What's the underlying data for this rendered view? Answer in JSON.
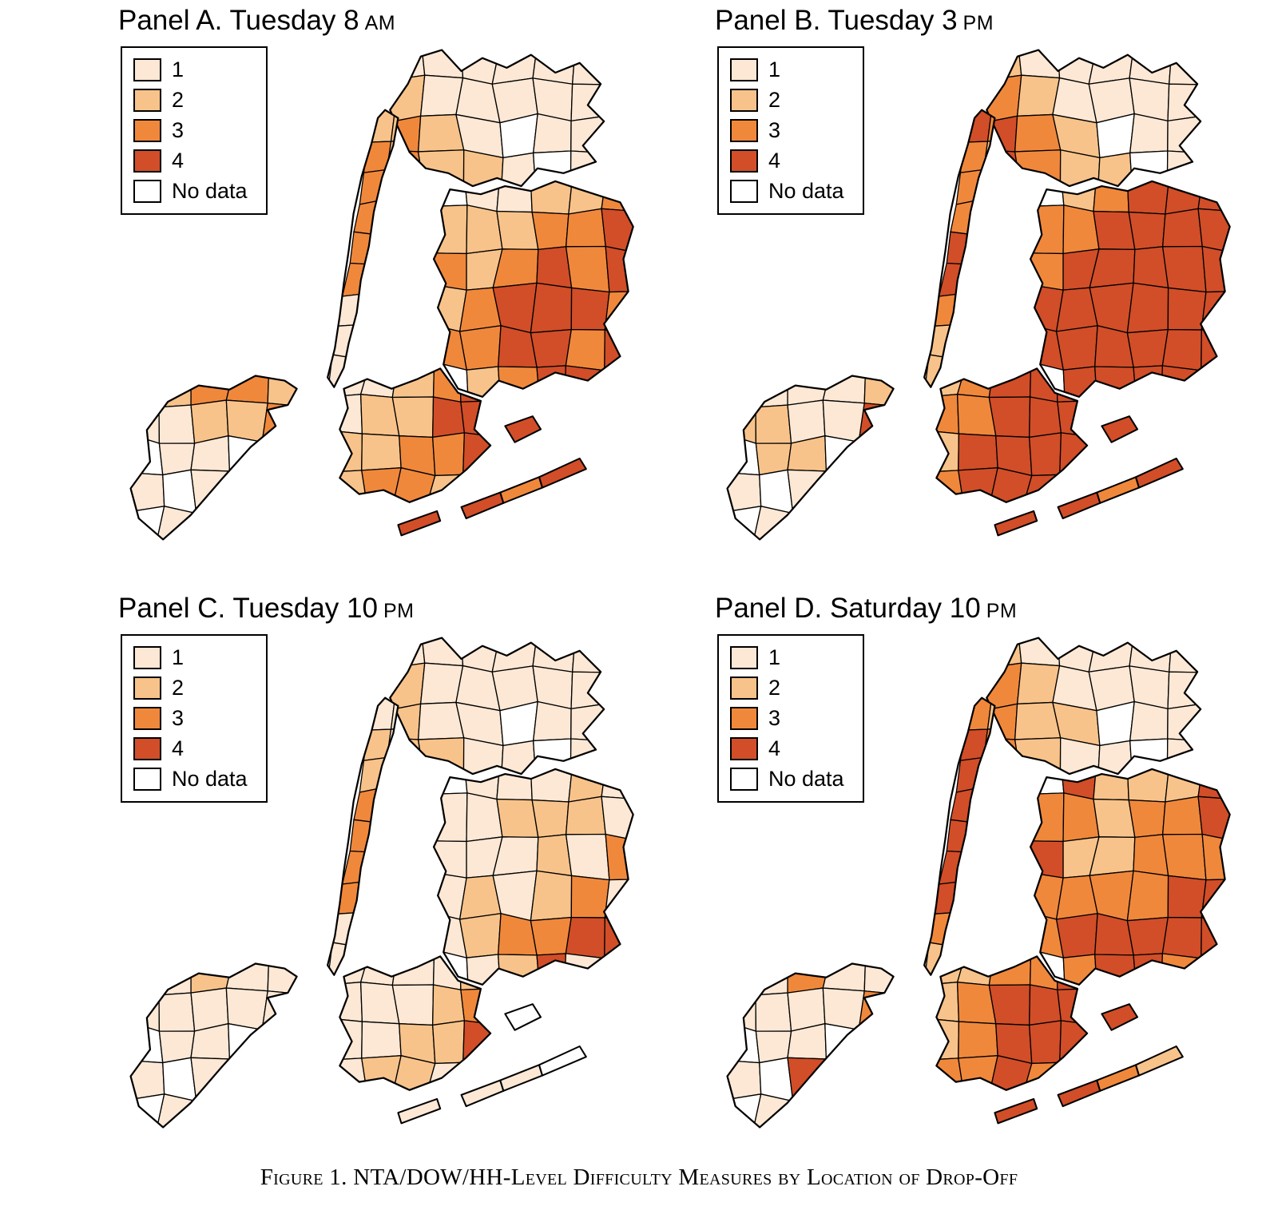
{
  "figure": {
    "caption": "Figure 1. NTA/DOW/HH-Level Difficulty Measures by Location of Drop-Off"
  },
  "legend": {
    "items": [
      {
        "label": "1",
        "value": 1
      },
      {
        "label": "2",
        "value": 2
      },
      {
        "label": "3",
        "value": 3
      },
      {
        "label": "4",
        "value": 4
      },
      {
        "label": "No data",
        "value": 0
      }
    ]
  },
  "colors": {
    "0": "#FFFFFF",
    "1": "#FCE8D5",
    "2": "#F8C38A",
    "3": "#F0883C",
    "4": "#D14E28",
    "outline": "#000000"
  },
  "panels": [
    {
      "id": "A",
      "title": "Panel A. Tuesday 8",
      "meridiem": "AM",
      "regions": {
        "bronx": [
          1,
          1,
          1,
          1,
          1,
          1,
          2,
          1,
          1,
          1,
          1,
          1,
          3,
          2,
          1,
          0,
          1,
          1,
          3,
          2,
          2,
          1,
          0,
          1
        ],
        "manhattan": [
          2,
          2,
          3,
          2,
          3,
          2,
          3,
          1,
          3,
          2,
          3,
          1,
          1,
          1,
          1,
          2,
          1,
          1
        ],
        "queens": [
          0,
          1,
          1,
          2,
          2,
          3,
          2,
          2,
          2,
          3,
          3,
          4,
          3,
          2,
          3,
          4,
          3,
          4,
          2,
          3,
          4,
          4,
          4,
          3,
          3,
          3,
          4,
          4,
          3,
          4,
          0,
          2,
          3,
          4,
          4,
          0
        ],
        "brooklyn": [
          1,
          1,
          2,
          3,
          4,
          1,
          2,
          2,
          4,
          4,
          2,
          2,
          3,
          3,
          4,
          2,
          3,
          3,
          2,
          0
        ],
        "staten": [
          1,
          2,
          3,
          3,
          2,
          1,
          1,
          2,
          2,
          3,
          0,
          1,
          1,
          0,
          4,
          1,
          0,
          1,
          1,
          0,
          0,
          1,
          0,
          1,
          0
        ],
        "rockaway": [
          4,
          4,
          3,
          4,
          4
        ]
      }
    },
    {
      "id": "B",
      "title": "Panel B. Tuesday 3",
      "meridiem": "PM",
      "regions": {
        "bronx": [
          2,
          1,
          1,
          1,
          1,
          1,
          3,
          2,
          1,
          1,
          1,
          1,
          4,
          3,
          2,
          0,
          1,
          1,
          4,
          3,
          2,
          2,
          0,
          1
        ],
        "manhattan": [
          4,
          3,
          3,
          2,
          3,
          2,
          3,
          2,
          4,
          2,
          4,
          2,
          3,
          2,
          2,
          3,
          2,
          2
        ],
        "queens": [
          0,
          2,
          3,
          4,
          4,
          4,
          3,
          3,
          4,
          4,
          4,
          4,
          3,
          4,
          4,
          4,
          4,
          4,
          4,
          4,
          4,
          4,
          4,
          4,
          4,
          4,
          4,
          4,
          4,
          4,
          0,
          4,
          4,
          4,
          4,
          0
        ],
        "brooklyn": [
          2,
          3,
          4,
          4,
          4,
          3,
          3,
          4,
          4,
          4,
          2,
          4,
          4,
          4,
          4,
          3,
          4,
          4,
          4,
          0
        ],
        "staten": [
          1,
          1,
          1,
          1,
          2,
          2,
          2,
          1,
          1,
          4,
          0,
          2,
          2,
          0,
          3,
          1,
          0,
          1,
          2,
          0,
          0,
          1,
          0,
          1,
          0
        ],
        "rockaway": [
          4,
          4,
          3,
          4,
          4
        ]
      }
    },
    {
      "id": "C",
      "title": "Panel C. Tuesday 10",
      "meridiem": "PM",
      "regions": {
        "bronx": [
          1,
          1,
          1,
          1,
          1,
          1,
          2,
          1,
          1,
          1,
          1,
          1,
          2,
          1,
          1,
          0,
          1,
          1,
          2,
          2,
          1,
          1,
          0,
          1
        ],
        "manhattan": [
          1,
          1,
          2,
          1,
          2,
          1,
          3,
          2,
          3,
          2,
          3,
          2,
          3,
          1,
          1,
          1,
          1,
          1
        ],
        "queens": [
          0,
          1,
          1,
          1,
          2,
          1,
          1,
          1,
          2,
          2,
          2,
          1,
          1,
          1,
          1,
          2,
          1,
          3,
          1,
          2,
          1,
          2,
          3,
          1,
          1,
          2,
          3,
          3,
          4,
          4,
          0,
          1,
          2,
          4,
          1,
          0
        ],
        "brooklyn": [
          1,
          1,
          1,
          1,
          2,
          1,
          1,
          1,
          2,
          3,
          1,
          1,
          2,
          2,
          4,
          1,
          2,
          2,
          1,
          0
        ],
        "staten": [
          1,
          1,
          2,
          1,
          1,
          1,
          1,
          1,
          1,
          1,
          0,
          1,
          1,
          0,
          1,
          1,
          0,
          1,
          1,
          0,
          0,
          1,
          0,
          1,
          0
        ],
        "rockaway": [
          0,
          1,
          1,
          0,
          1
        ]
      }
    },
    {
      "id": "D",
      "title": "Panel D. Saturday 10",
      "meridiem": "PM",
      "regions": {
        "bronx": [
          2,
          1,
          1,
          1,
          1,
          1,
          3,
          2,
          1,
          1,
          1,
          1,
          3,
          2,
          2,
          0,
          1,
          1,
          3,
          2,
          1,
          1,
          0,
          1
        ],
        "manhattan": [
          3,
          2,
          4,
          3,
          4,
          3,
          4,
          2,
          4,
          3,
          4,
          2,
          4,
          3,
          3,
          2,
          2,
          2
        ],
        "queens": [
          0,
          4,
          2,
          2,
          2,
          4,
          3,
          3,
          2,
          3,
          3,
          4,
          4,
          2,
          2,
          3,
          3,
          3,
          3,
          3,
          3,
          3,
          4,
          4,
          3,
          4,
          4,
          4,
          4,
          4,
          0,
          3,
          4,
          4,
          3,
          0
        ],
        "brooklyn": [
          2,
          2,
          3,
          3,
          4,
          2,
          3,
          4,
          4,
          4,
          2,
          3,
          4,
          4,
          4,
          3,
          3,
          4,
          3,
          0
        ],
        "staten": [
          1,
          1,
          3,
          1,
          1,
          1,
          1,
          1,
          1,
          3,
          0,
          1,
          1,
          0,
          1,
          1,
          0,
          4,
          3,
          0,
          0,
          1,
          0,
          1,
          0
        ],
        "rockaway": [
          4,
          4,
          3,
          2,
          4
        ]
      }
    }
  ]
}
